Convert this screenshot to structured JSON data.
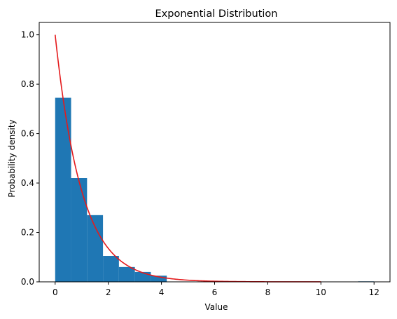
{
  "chart_data": {
    "type": "bar",
    "title": "Exponential Distribution",
    "xlabel": "Value",
    "ylabel": "Probability density",
    "xlim": [
      -0.6,
      12.6
    ],
    "ylim": [
      0,
      1.05
    ],
    "xticks": [
      0,
      2,
      4,
      6,
      8,
      10,
      12
    ],
    "yticks": [
      0.0,
      0.2,
      0.4,
      0.6,
      0.8,
      1.0
    ],
    "grid": false,
    "histogram": {
      "color": "#1f77b4",
      "bins": [
        {
          "x0": 0.0,
          "x1": 0.6,
          "value": 0.745
        },
        {
          "x0": 0.6,
          "x1": 1.2,
          "value": 0.42
        },
        {
          "x0": 1.2,
          "x1": 1.8,
          "value": 0.27
        },
        {
          "x0": 1.8,
          "x1": 2.4,
          "value": 0.105
        },
        {
          "x0": 2.4,
          "x1": 3.0,
          "value": 0.06
        },
        {
          "x0": 3.0,
          "x1": 3.6,
          "value": 0.04
        },
        {
          "x0": 3.6,
          "x1": 4.2,
          "value": 0.025
        },
        {
          "x0": 4.2,
          "x1": 4.8,
          "value": 0.0
        },
        {
          "x0": 4.8,
          "x1": 5.4,
          "value": 0.0
        },
        {
          "x0": 5.4,
          "x1": 6.0,
          "value": 0.0
        },
        {
          "x0": 6.0,
          "x1": 6.6,
          "value": 0.0
        },
        {
          "x0": 6.6,
          "x1": 7.2,
          "value": 0.0
        },
        {
          "x0": 7.2,
          "x1": 7.8,
          "value": 0.0
        },
        {
          "x0": 7.8,
          "x1": 8.4,
          "value": 0.0
        },
        {
          "x0": 8.4,
          "x1": 9.0,
          "value": 0.0
        },
        {
          "x0": 9.0,
          "x1": 9.6,
          "value": 0.0
        },
        {
          "x0": 9.6,
          "x1": 10.2,
          "value": 0.0
        },
        {
          "x0": 10.2,
          "x1": 10.8,
          "value": 0.0
        },
        {
          "x0": 10.8,
          "x1": 11.4,
          "value": 0.0
        },
        {
          "x0": 11.4,
          "x1": 12.0,
          "value": 0.002
        }
      ]
    },
    "curve": {
      "type": "line",
      "color": "#e41a1c",
      "function": "exp(-x)",
      "x_range": [
        0,
        10
      ]
    }
  }
}
